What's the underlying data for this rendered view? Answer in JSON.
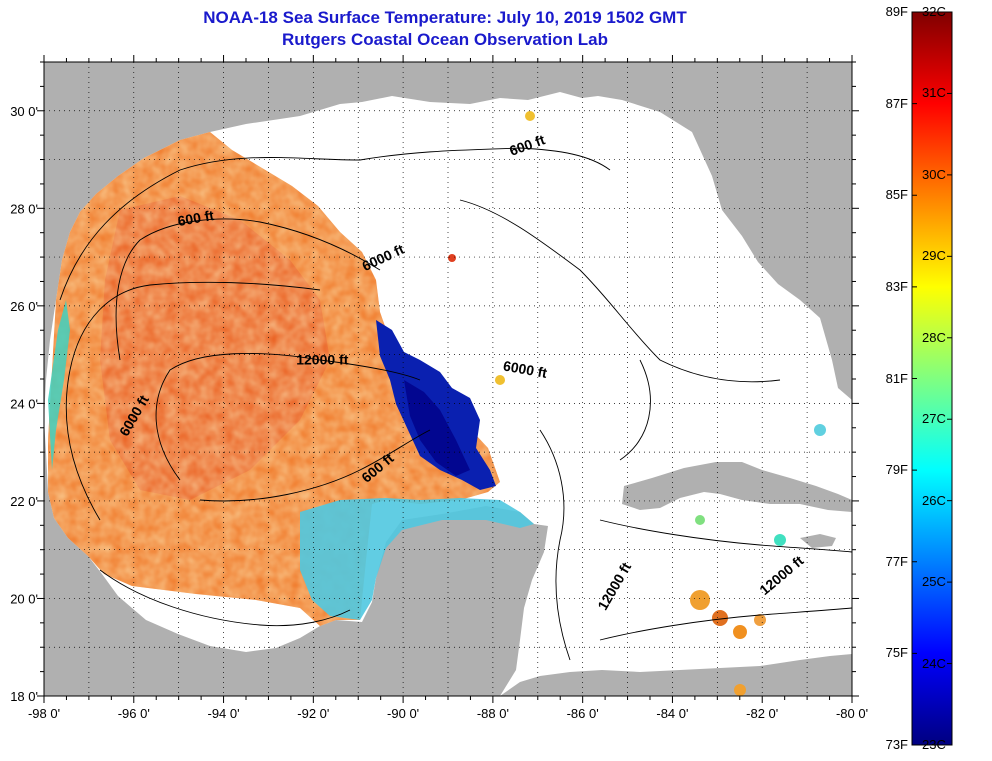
{
  "title": {
    "line1": "NOAA-18 Sea Surface Temperature:  July 10, 2019 1502 GMT",
    "line2": "Rutgers Coastal Ocean Observation Lab"
  },
  "axes": {
    "lon_range": [
      -98,
      -80
    ],
    "lat_range": [
      18,
      31
    ],
    "lon_ticks": [
      "-98 0'",
      "-96 0'",
      "-94 0'",
      "-92 0'",
      "-90 0'",
      "-88 0'",
      "-86 0'",
      "-84 0'",
      "-82 0'",
      "-80 0'"
    ],
    "lat_ticks": [
      "18 0'",
      "20 0'",
      "22 0'",
      "24 0'",
      "26 0'",
      "28 0'",
      "30 0'"
    ]
  },
  "contour_labels": [
    {
      "text": "600 ft",
      "lon": -87.2,
      "lat": 29.2,
      "rotate": -20
    },
    {
      "text": "600 ft",
      "lon": -94.6,
      "lat": 27.7,
      "rotate": -10
    },
    {
      "text": "6000 ft",
      "lon": -90.4,
      "lat": 26.9,
      "rotate": -25
    },
    {
      "text": "12000 ft",
      "lon": -91.8,
      "lat": 24.8,
      "rotate": 0
    },
    {
      "text": "6000 ft",
      "lon": -87.3,
      "lat": 24.6,
      "rotate": 10
    },
    {
      "text": "6000 ft",
      "lon": -95.9,
      "lat": 23.7,
      "rotate": -60
    },
    {
      "text": "600 ft",
      "lon": -90.5,
      "lat": 22.6,
      "rotate": -40
    },
    {
      "text": "12000 ft",
      "lon": -85.2,
      "lat": 20.2,
      "rotate": -60
    },
    {
      "text": "12000 ft",
      "lon": -81.5,
      "lat": 20.4,
      "rotate": -40
    }
  ],
  "colorbar": {
    "fahrenheit": [
      "89F",
      "87F",
      "85F",
      "83F",
      "81F",
      "79F",
      "77F",
      "75F",
      "73F"
    ],
    "celsius": [
      "32C",
      "31C",
      "30C",
      "29C",
      "28C",
      "27C",
      "26C",
      "25C",
      "24C",
      "23C"
    ],
    "stops": [
      "#000080",
      "#0000ff",
      "#0080ff",
      "#00ffff",
      "#80ff80",
      "#ffff00",
      "#ff8000",
      "#ff0000",
      "#800000"
    ]
  },
  "colors": {
    "land": "#b0b0b0",
    "ocean_nodata": "#ffffff",
    "warm": "#f08030",
    "cool": "#0020c0"
  }
}
